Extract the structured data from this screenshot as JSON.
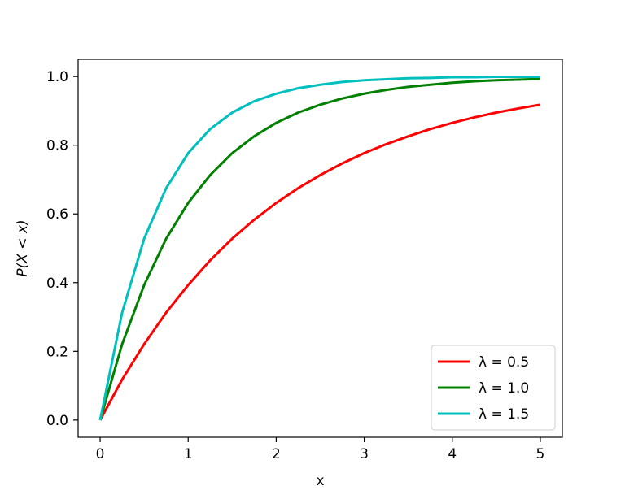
{
  "chart_data": {
    "type": "line",
    "title": "",
    "xlabel": "x",
    "ylabel": "P(X < x)",
    "xlim": [
      -0.25,
      5.25
    ],
    "ylim": [
      -0.05,
      1.05
    ],
    "xticks": [
      0,
      1,
      2,
      3,
      4,
      5
    ],
    "xtick_labels": [
      "0",
      "1",
      "2",
      "3",
      "4",
      "5"
    ],
    "yticks": [
      0.0,
      0.2,
      0.4,
      0.6,
      0.8,
      1.0
    ],
    "ytick_labels": [
      "0.0",
      "0.2",
      "0.4",
      "0.6",
      "0.8",
      "1.0"
    ],
    "grid": false,
    "legend_position": "bottom-right",
    "x": [
      0,
      0.25,
      0.5,
      0.75,
      1,
      1.25,
      1.5,
      1.75,
      2,
      2.25,
      2.5,
      2.75,
      3,
      3.25,
      3.5,
      3.75,
      4,
      4.25,
      4.5,
      4.75,
      5
    ],
    "series": [
      {
        "name": "λ = 0.5",
        "color": "#ff0000",
        "values": [
          0.0,
          0.118,
          0.221,
          0.313,
          0.393,
          0.465,
          0.528,
          0.583,
          0.632,
          0.675,
          0.713,
          0.747,
          0.777,
          0.803,
          0.826,
          0.847,
          0.865,
          0.881,
          0.895,
          0.907,
          0.918
        ]
      },
      {
        "name": "λ = 1.0",
        "color": "#008000",
        "values": [
          0.0,
          0.221,
          0.393,
          0.528,
          0.632,
          0.713,
          0.777,
          0.826,
          0.865,
          0.895,
          0.918,
          0.936,
          0.95,
          0.961,
          0.97,
          0.976,
          0.982,
          0.986,
          0.989,
          0.991,
          0.993
        ]
      },
      {
        "name": "λ = 1.5",
        "color": "#00bfbf",
        "values": [
          0.0,
          0.313,
          0.528,
          0.675,
          0.777,
          0.847,
          0.895,
          0.928,
          0.95,
          0.966,
          0.976,
          0.984,
          0.989,
          0.992,
          0.995,
          0.996,
          0.998,
          0.998,
          0.999,
          0.999,
          0.999
        ]
      }
    ]
  }
}
